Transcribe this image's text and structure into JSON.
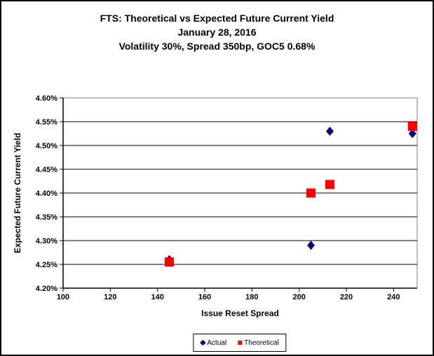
{
  "chart_data": {
    "type": "scatter",
    "title": "FTS: Theoretical vs Expected Future Current Yield",
    "subtitle": [
      "January 28, 2016",
      "Volatility 30%, Spread 350bp, GOC5 0.68%"
    ],
    "xlabel": "Issue Reset Spread",
    "ylabel": "Expected Future Current Yield",
    "xlim": [
      100,
      250
    ],
    "ylim": [
      4.2,
      4.6
    ],
    "x_ticks": [
      100,
      120,
      140,
      160,
      180,
      200,
      220,
      240
    ],
    "x_tick_labels": [
      "100",
      "120",
      "140",
      "160",
      "180",
      "200",
      "220",
      "240"
    ],
    "y_ticks": [
      4.2,
      4.25,
      4.3,
      4.35,
      4.4,
      4.45,
      4.5,
      4.55,
      4.6
    ],
    "y_tick_labels": [
      "4.20%",
      "4.25%",
      "4.30%",
      "4.35%",
      "4.40%",
      "4.45%",
      "4.50%",
      "4.55%",
      "4.60%"
    ],
    "grid": "horizontal",
    "legend_position": "bottom-center",
    "series": [
      {
        "name": "Actual",
        "marker": "diamond",
        "color": "#000080",
        "points": [
          [
            145,
            4.26
          ],
          [
            205,
            4.29
          ],
          [
            213,
            4.53
          ],
          [
            248,
            4.525
          ]
        ]
      },
      {
        "name": "Theoretical",
        "marker": "square",
        "color": "#FF0000",
        "points": [
          [
            145,
            4.255
          ],
          [
            205,
            4.4
          ],
          [
            213,
            4.418
          ],
          [
            248,
            4.54
          ]
        ]
      }
    ],
    "colors": {
      "axis": "#000000",
      "gridline": "#000000",
      "plot_border": "#808080",
      "text": "#000000",
      "background": "#FFFFFF"
    }
  }
}
